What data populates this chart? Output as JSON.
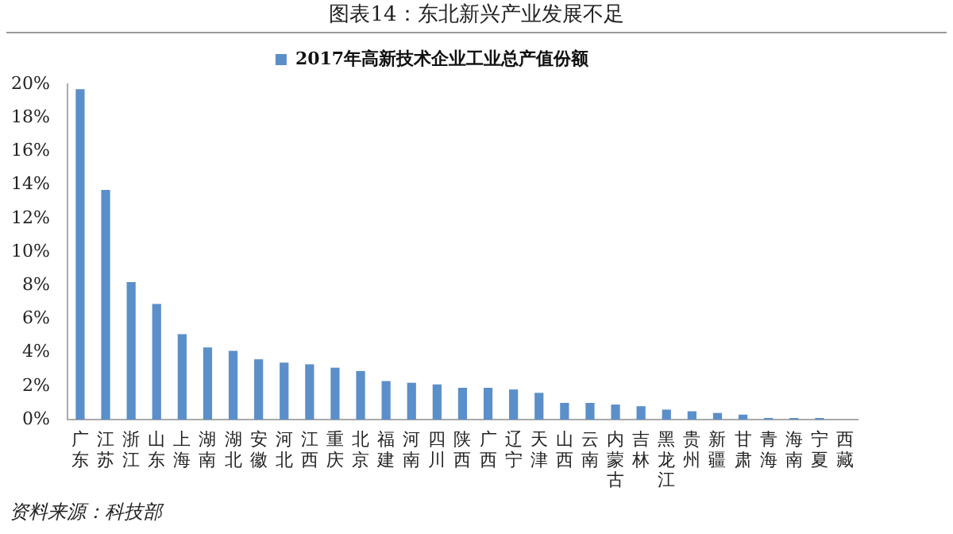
{
  "chart_data": {
    "type": "bar",
    "title": "图表14：东北新兴产业发展不足",
    "categories": [
      "广东",
      "江苏",
      "浙江",
      "山东",
      "上海",
      "湖南",
      "湖北",
      "安徽",
      "河北",
      "江西",
      "重庆",
      "北京",
      "福建",
      "河南",
      "四川",
      "陕西",
      "广西",
      "辽宁",
      "天津",
      "山西",
      "云南",
      "内蒙古",
      "吉林",
      "黑龙江",
      "贵州",
      "新疆",
      "甘肃",
      "青海",
      "海南",
      "宁夏",
      "西藏"
    ],
    "series": [
      {
        "name": "2017年高新技术企业工业总产值份额",
        "color": "#5b8fc9",
        "values": [
          19.7,
          13.7,
          8.2,
          6.9,
          5.1,
          4.3,
          4.1,
          3.6,
          3.4,
          3.3,
          3.1,
          2.9,
          2.3,
          2.2,
          2.1,
          1.9,
          1.9,
          1.8,
          1.6,
          1.0,
          1.0,
          0.9,
          0.8,
          0.6,
          0.5,
          0.4,
          0.3,
          0.1,
          0.1,
          0.1,
          0
        ]
      }
    ],
    "ylim": [
      0,
      20
    ],
    "yticks": [
      {
        "value": 0,
        "label": "0%"
      },
      {
        "value": 2,
        "label": "2%"
      },
      {
        "value": 4,
        "label": "4%"
      },
      {
        "value": 6,
        "label": "6%"
      },
      {
        "value": 8,
        "label": "8%"
      },
      {
        "value": 10,
        "label": "10%"
      },
      {
        "value": 12,
        "label": "12%"
      },
      {
        "value": 14,
        "label": "14%"
      },
      {
        "value": 16,
        "label": "16%"
      },
      {
        "value": 18,
        "label": "18%"
      },
      {
        "value": 20,
        "label": "20%"
      }
    ],
    "grid": false,
    "legend": "top",
    "annotations": [
      "资料来源：科技部"
    ]
  }
}
